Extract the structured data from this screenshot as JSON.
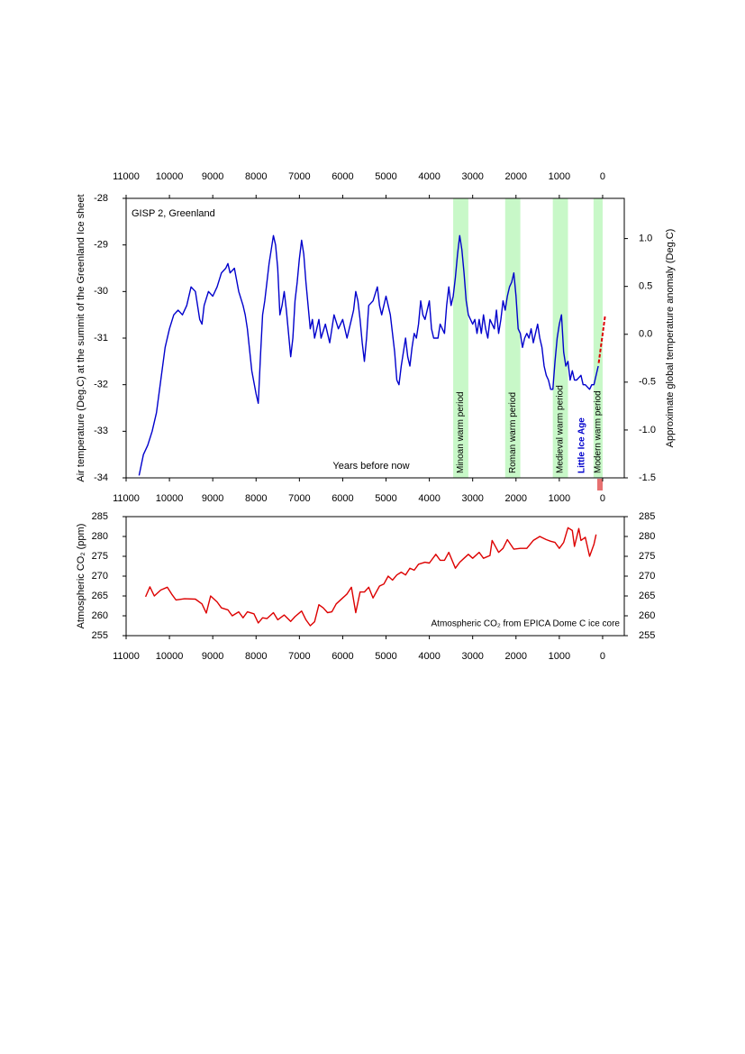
{
  "chart_data": [
    {
      "type": "line",
      "title": "GISP 2, Greenland",
      "xlabel": "Years before now",
      "ylabel": "Air temperature (Deg.C) at the summit of the Greenland Ice sheet",
      "y2label": "Approximate global temperature anomaly (Deg.C)",
      "xlim": [
        11000,
        -500
      ],
      "xticks": [
        11000,
        10000,
        9000,
        8000,
        7000,
        6000,
        5000,
        4000,
        3000,
        2000,
        1000,
        0
      ],
      "ylim": [
        -34,
        -28
      ],
      "yticks": [
        -34,
        -33,
        -32,
        -31,
        -30,
        -29,
        -28
      ],
      "y2lim": [
        -1.5,
        1.42
      ],
      "y2ticks": [
        -1.5,
        {
          "value": -1,
          "label": "-1.0"
        },
        -0.5,
        {
          "value": 0,
          "label": "0.0"
        },
        0.5,
        {
          "value": 1,
          "label": "1.0"
        }
      ],
      "bands": [
        {
          "label": "Minoan warm period",
          "x": [
            3450,
            3100
          ],
          "color": "#c8f8c8"
        },
        {
          "label": "Roman warm period",
          "x": [
            2250,
            1900
          ],
          "color": "#c8f8c8"
        },
        {
          "label": "Medieval warm period",
          "x": [
            1150,
            800
          ],
          "color": "#c8f8c8"
        },
        {
          "label": "Modern warm period",
          "x": [
            210,
            0
          ],
          "color": "#c8f8c8"
        }
      ],
      "annotation": "Little Ice Age",
      "series": [
        {
          "color": "#0000cc",
          "x": [
            10700,
            10600,
            10500,
            10400,
            10300,
            10200,
            10100,
            10000,
            9900,
            9800,
            9700,
            9600,
            9500,
            9400,
            9300,
            9250,
            9200,
            9100,
            9000,
            8900,
            8800,
            8700,
            8650,
            8600,
            8500,
            8400,
            8300,
            8250,
            8200,
            8100,
            8000,
            7950,
            7900,
            7850,
            7800,
            7700,
            7650,
            7600,
            7550,
            7500,
            7450,
            7400,
            7350,
            7300,
            7250,
            7200,
            7150,
            7100,
            7050,
            7000,
            6950,
            6900,
            6850,
            6800,
            6750,
            6700,
            6650,
            6600,
            6550,
            6500,
            6400,
            6350,
            6300,
            6200,
            6100,
            6000,
            5900,
            5800,
            5750,
            5700,
            5650,
            5600,
            5550,
            5500,
            5450,
            5400,
            5300,
            5200,
            5150,
            5100,
            5000,
            4950,
            4900,
            4850,
            4800,
            4750,
            4700,
            4650,
            4600,
            4550,
            4500,
            4450,
            4400,
            4350,
            4300,
            4250,
            4200,
            4150,
            4100,
            4050,
            4000,
            3950,
            3900,
            3800,
            3750,
            3700,
            3650,
            3600,
            3550,
            3500,
            3450,
            3400,
            3350,
            3300,
            3250,
            3200,
            3150,
            3100,
            3000,
            2950,
            2900,
            2850,
            2800,
            2750,
            2700,
            2650,
            2600,
            2500,
            2450,
            2400,
            2350,
            2300,
            2250,
            2200,
            2150,
            2100,
            2050,
            2000,
            1950,
            1900,
            1850,
            1800,
            1750,
            1700,
            1650,
            1600,
            1550,
            1500,
            1450,
            1400,
            1350,
            1300,
            1250,
            1200,
            1150,
            1100,
            1050,
            1000,
            950,
            900,
            850,
            800,
            750,
            700,
            650,
            600,
            500,
            450,
            400,
            300,
            250,
            200,
            150,
            100
          ],
          "values": [
            -33.95,
            -33.5,
            -33.3,
            -33.0,
            -32.6,
            -31.9,
            -31.2,
            -30.8,
            -30.5,
            -30.4,
            -30.5,
            -30.3,
            -29.9,
            -30.0,
            -30.6,
            -30.7,
            -30.3,
            -30.0,
            -30.1,
            -29.9,
            -29.6,
            -29.5,
            -29.4,
            -29.6,
            -29.5,
            -30.0,
            -30.3,
            -30.5,
            -30.8,
            -31.7,
            -32.2,
            -32.4,
            -31.4,
            -30.5,
            -30.2,
            -29.4,
            -29.1,
            -28.8,
            -29.0,
            -29.5,
            -30.5,
            -30.3,
            -30.0,
            -30.4,
            -30.9,
            -31.4,
            -31.0,
            -30.2,
            -29.8,
            -29.3,
            -28.9,
            -29.2,
            -29.8,
            -30.3,
            -30.8,
            -30.6,
            -31.0,
            -30.8,
            -30.6,
            -31.0,
            -30.7,
            -30.9,
            -31.1,
            -30.5,
            -30.8,
            -30.6,
            -31.0,
            -30.6,
            -30.4,
            -30.0,
            -30.2,
            -30.6,
            -31.1,
            -31.5,
            -31.0,
            -30.3,
            -30.2,
            -29.9,
            -30.3,
            -30.5,
            -30.1,
            -30.3,
            -30.5,
            -30.9,
            -31.3,
            -31.9,
            -32.0,
            -31.6,
            -31.3,
            -31.0,
            -31.4,
            -31.6,
            -31.2,
            -30.9,
            -31.0,
            -30.7,
            -30.2,
            -30.5,
            -30.6,
            -30.4,
            -30.2,
            -30.8,
            -31.0,
            -31.0,
            -30.7,
            -30.8,
            -30.9,
            -30.3,
            -29.9,
            -30.3,
            -30.1,
            -29.7,
            -29.2,
            -28.8,
            -29.1,
            -29.6,
            -30.2,
            -30.5,
            -30.7,
            -30.6,
            -30.9,
            -30.6,
            -30.9,
            -30.5,
            -30.8,
            -31.0,
            -30.6,
            -30.8,
            -30.4,
            -30.9,
            -30.6,
            -30.2,
            -30.4,
            -30.1,
            -29.9,
            -29.8,
            -29.6,
            -30.1,
            -30.8,
            -30.9,
            -31.2,
            -31.0,
            -30.9,
            -31.0,
            -30.8,
            -31.1,
            -30.9,
            -30.7,
            -31.0,
            -31.2,
            -31.6,
            -31.8,
            -31.9,
            -32.1,
            -32.1,
            -31.5,
            -31.0,
            -30.7,
            -30.5,
            -31.3,
            -31.6,
            -31.5,
            -31.9,
            -31.7,
            -31.9,
            -31.9,
            -31.8,
            -32.0,
            -32.0,
            -32.1,
            -32.0,
            -32.0,
            -31.8,
            -31.6
          ]
        },
        {
          "color": "#dd0000",
          "axis": "y2",
          "dash": true,
          "x": [
            90,
            -60
          ],
          "values": [
            -0.3,
            0.2
          ]
        }
      ]
    },
    {
      "type": "line",
      "ylabel": "Atmospheric CO₂ (ppm)",
      "annotation": "Atmospheric CO₂ from EPICA Dome C ice core",
      "xlim": [
        11000,
        -500
      ],
      "xticks": [
        11000,
        10000,
        9000,
        8000,
        7000,
        6000,
        5000,
        4000,
        3000,
        2000,
        1000,
        0
      ],
      "ylim": [
        255,
        285
      ],
      "yticks": [
        255,
        260,
        265,
        270,
        275,
        280,
        285
      ],
      "y2lim": [
        255,
        285
      ],
      "y2ticks": [
        255,
        260,
        265,
        270,
        275,
        280,
        285
      ],
      "series": [
        {
          "color": "#dd0000",
          "x": [
            10550,
            10450,
            10350,
            10200,
            10050,
            9950,
            9850,
            9650,
            9400,
            9250,
            9150,
            9050,
            8900,
            8800,
            8650,
            8550,
            8400,
            8300,
            8200,
            8050,
            7950,
            7850,
            7750,
            7600,
            7500,
            7350,
            7200,
            7100,
            6950,
            6850,
            6750,
            6650,
            6550,
            6450,
            6350,
            6250,
            6150,
            6000,
            5900,
            5800,
            5700,
            5600,
            5500,
            5400,
            5300,
            5150,
            5050,
            4950,
            4850,
            4750,
            4650,
            4550,
            4450,
            4350,
            4250,
            4100,
            4000,
            3850,
            3750,
            3650,
            3550,
            3400,
            3300,
            3200,
            3100,
            3000,
            2850,
            2750,
            2600,
            2550,
            2400,
            2300,
            2200,
            2050,
            1900,
            1750,
            1600,
            1450,
            1300,
            1200,
            1100,
            1000,
            900,
            800,
            700,
            650,
            550,
            500,
            400,
            300,
            200,
            150
          ],
          "values": [
            264.8,
            267.3,
            265.0,
            266.5,
            267.2,
            265.5,
            264.0,
            264.3,
            264.2,
            263.0,
            260.7,
            265.0,
            263.5,
            262.0,
            261.5,
            260.0,
            261.0,
            259.5,
            261.0,
            260.5,
            258.2,
            259.5,
            259.3,
            260.8,
            259.0,
            260.2,
            258.6,
            259.8,
            261.2,
            259.0,
            257.5,
            258.5,
            262.8,
            262.0,
            260.8,
            261.0,
            263.0,
            264.5,
            265.5,
            267.2,
            260.8,
            266.0,
            266.0,
            267.2,
            264.5,
            267.5,
            268.0,
            270.0,
            269.0,
            270.3,
            271.0,
            270.3,
            272.0,
            271.5,
            273.0,
            273.5,
            273.3,
            275.5,
            274.0,
            274.0,
            276.0,
            272.0,
            273.5,
            274.5,
            275.5,
            274.5,
            276.0,
            274.5,
            275.2,
            279.0,
            276.0,
            277.0,
            279.2,
            276.8,
            277.0,
            277.0,
            279.0,
            280.0,
            279.2,
            278.8,
            278.5,
            277.0,
            278.5,
            282.2,
            281.5,
            277.5,
            282.0,
            279.0,
            279.8,
            275.0,
            278.0,
            280.5
          ]
        }
      ]
    }
  ]
}
